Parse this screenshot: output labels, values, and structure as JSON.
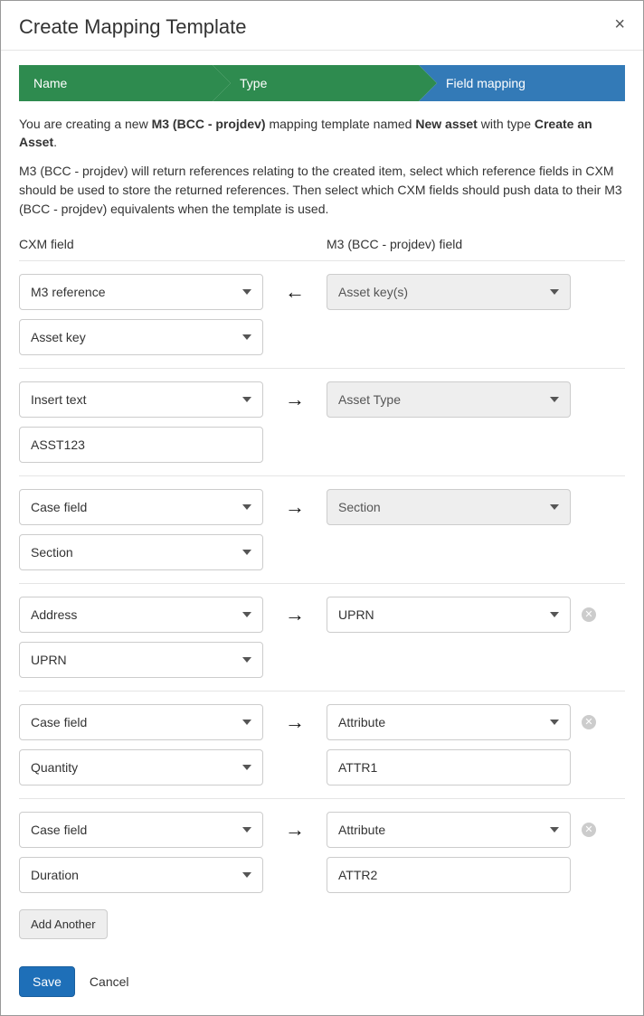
{
  "modal": {
    "title": "Create Mapping Template",
    "close_label": "×"
  },
  "wizard": {
    "steps": [
      {
        "label": "Name",
        "state": "done",
        "color": "#2e8b4f"
      },
      {
        "label": "Type",
        "state": "done",
        "color": "#2e8b4f"
      },
      {
        "label": "Field mapping",
        "state": "active",
        "color": "#337ab7"
      }
    ]
  },
  "intro": {
    "prefix": "You are creating a new ",
    "connector_name": "M3 (BCC - projdev)",
    "middle": " mapping template named ",
    "template_name": "New asset",
    "with_type": " with type ",
    "type_name": "Create an Asset",
    "suffix": "."
  },
  "description": "M3 (BCC - projdev) will return references relating to the created item, select which reference fields in CXM should be used to store the returned references. Then select which CXM fields should push data to their M3 (BCC - projdev) equivalents when the template is used.",
  "columns": {
    "left_header": "CXM field",
    "right_header": "M3 (BCC - projdev) field"
  },
  "arrows": {
    "left": "←",
    "right": "→"
  },
  "icons": {
    "remove": "✕"
  },
  "mappings": [
    {
      "cxm_primary": "M3 reference",
      "direction": "left",
      "target": "Asset key(s)",
      "target_locked": true,
      "cxm_secondary_type": "select",
      "cxm_secondary": "Asset key",
      "target_secondary": "",
      "removable": false
    },
    {
      "cxm_primary": "Insert text",
      "direction": "right",
      "target": "Asset Type",
      "target_locked": true,
      "cxm_secondary_type": "text",
      "cxm_secondary": "ASST123",
      "target_secondary": "",
      "removable": false
    },
    {
      "cxm_primary": "Case field",
      "direction": "right",
      "target": "Section",
      "target_locked": true,
      "cxm_secondary_type": "select",
      "cxm_secondary": "Section",
      "target_secondary": "",
      "removable": false
    },
    {
      "cxm_primary": "Address",
      "direction": "right",
      "target": "UPRN",
      "target_locked": false,
      "cxm_secondary_type": "select",
      "cxm_secondary": "UPRN",
      "target_secondary": "",
      "removable": true
    },
    {
      "cxm_primary": "Case field",
      "direction": "right",
      "target": "Attribute",
      "target_locked": false,
      "cxm_secondary_type": "select",
      "cxm_secondary": "Quantity",
      "target_secondary": "ATTR1",
      "removable": true
    },
    {
      "cxm_primary": "Case field",
      "direction": "right",
      "target": "Attribute",
      "target_locked": false,
      "cxm_secondary_type": "select",
      "cxm_secondary": "Duration",
      "target_secondary": "ATTR2",
      "removable": true
    }
  ],
  "buttons": {
    "add_another": "Add Another",
    "save": "Save",
    "cancel": "Cancel"
  },
  "style": {
    "accent_green": "#2e8b4f",
    "accent_blue": "#337ab7",
    "primary_button": "#1e6fb8",
    "border": "#cccccc",
    "divider": "#e5e5e5",
    "disabled_bg": "#eeeeee",
    "remove_icon_bg": "#cccccc",
    "background": "#ffffff",
    "font_size_base": 14,
    "title_font_size": 22
  }
}
